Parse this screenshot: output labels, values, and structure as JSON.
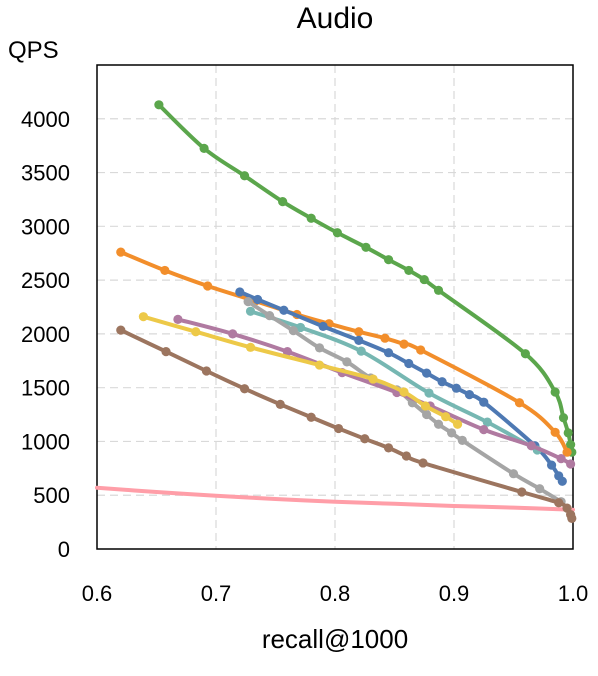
{
  "chart_data": {
    "type": "line",
    "title": "Audio",
    "xlabel": "recall@1000",
    "ylabel": "QPS",
    "xlim": [
      0.6,
      1.0
    ],
    "ylim": [
      0,
      4500
    ],
    "xticks": [
      0.6,
      0.7,
      0.8,
      0.9,
      1.0
    ],
    "xtick_labels": [
      "0.6",
      "0.7",
      "0.8",
      "0.9",
      "1.0"
    ],
    "yticks": [
      0,
      500,
      1000,
      1500,
      2000,
      2500,
      3000,
      3500,
      4000
    ],
    "ytick_labels": [
      "0",
      "500",
      "1000",
      "1500",
      "2000",
      "2500",
      "3000",
      "3500",
      "4000"
    ],
    "grid": true,
    "series": [
      {
        "color": "#ff9ea8",
        "markers": false,
        "points": [
          [
            0.6,
            570
          ],
          [
            0.65,
            530
          ],
          [
            0.7,
            495
          ],
          [
            0.75,
            465
          ],
          [
            0.8,
            440
          ],
          [
            0.85,
            420
          ],
          [
            0.9,
            400
          ],
          [
            0.95,
            385
          ],
          [
            1.0,
            365
          ]
        ]
      },
      {
        "color": "#5ba64c",
        "markers": true,
        "points": [
          [
            0.652,
            4130
          ],
          [
            0.69,
            3725
          ],
          [
            0.724,
            3470
          ],
          [
            0.756,
            3230
          ],
          [
            0.78,
            3075
          ],
          [
            0.802,
            2940
          ],
          [
            0.826,
            2805
          ],
          [
            0.845,
            2690
          ],
          [
            0.862,
            2590
          ],
          [
            0.875,
            2505
          ],
          [
            0.887,
            2405
          ],
          [
            0.96,
            1815
          ],
          [
            0.985,
            1460
          ],
          [
            0.992,
            1220
          ],
          [
            0.996,
            1080
          ],
          [
            0.998,
            970
          ],
          [
            0.999,
            900
          ]
        ]
      },
      {
        "color": "#f28e2b",
        "markers": true,
        "points": [
          [
            0.62,
            2760
          ],
          [
            0.657,
            2590
          ],
          [
            0.693,
            2445
          ],
          [
            0.733,
            2305
          ],
          [
            0.768,
            2180
          ],
          [
            0.795,
            2095
          ],
          [
            0.82,
            2020
          ],
          [
            0.842,
            1960
          ],
          [
            0.858,
            1905
          ],
          [
            0.872,
            1850
          ],
          [
            0.955,
            1360
          ],
          [
            0.985,
            1085
          ],
          [
            0.995,
            900
          ]
        ]
      },
      {
        "color": "#4e79b3",
        "markers": true,
        "points": [
          [
            0.72,
            2390
          ],
          [
            0.735,
            2320
          ],
          [
            0.757,
            2220
          ],
          [
            0.79,
            2070
          ],
          [
            0.82,
            1940
          ],
          [
            0.845,
            1825
          ],
          [
            0.862,
            1725
          ],
          [
            0.877,
            1635
          ],
          [
            0.89,
            1555
          ],
          [
            0.902,
            1495
          ],
          [
            0.913,
            1435
          ],
          [
            0.925,
            1365
          ],
          [
            0.968,
            960
          ],
          [
            0.982,
            780
          ],
          [
            0.988,
            680
          ],
          [
            0.991,
            630
          ]
        ]
      },
      {
        "color": "#76b7b2",
        "markers": true,
        "points": [
          [
            0.729,
            2210
          ],
          [
            0.771,
            2060
          ],
          [
            0.822,
            1840
          ],
          [
            0.879,
            1450
          ],
          [
            0.928,
            1180
          ],
          [
            0.97,
            920
          ]
        ]
      },
      {
        "color": "#a5a5a5",
        "markers": true,
        "points": [
          [
            0.727,
            2300
          ],
          [
            0.745,
            2170
          ],
          [
            0.765,
            2030
          ],
          [
            0.787,
            1870
          ],
          [
            0.81,
            1740
          ],
          [
            0.83,
            1590
          ],
          [
            0.852,
            1480
          ],
          [
            0.865,
            1360
          ],
          [
            0.877,
            1250
          ],
          [
            0.887,
            1160
          ],
          [
            0.898,
            1080
          ],
          [
            0.907,
            1010
          ],
          [
            0.95,
            700
          ],
          [
            0.972,
            560
          ],
          [
            0.99,
            440
          ]
        ]
      },
      {
        "color": "#b07aa1",
        "markers": true,
        "points": [
          [
            0.668,
            2135
          ],
          [
            0.714,
            2000
          ],
          [
            0.76,
            1835
          ],
          [
            0.806,
            1640
          ],
          [
            0.852,
            1455
          ],
          [
            0.88,
            1330
          ],
          [
            0.925,
            1110
          ],
          [
            0.965,
            960
          ],
          [
            0.99,
            840
          ],
          [
            0.998,
            790
          ]
        ]
      },
      {
        "color": "#edc948",
        "markers": true,
        "points": [
          [
            0.639,
            2160
          ],
          [
            0.683,
            2020
          ],
          [
            0.729,
            1875
          ],
          [
            0.787,
            1710
          ],
          [
            0.832,
            1580
          ],
          [
            0.858,
            1460
          ],
          [
            0.876,
            1330
          ],
          [
            0.893,
            1230
          ],
          [
            0.903,
            1160
          ]
        ]
      },
      {
        "color": "#9c755f",
        "markers": true,
        "points": [
          [
            0.62,
            2035
          ],
          [
            0.658,
            1835
          ],
          [
            0.692,
            1655
          ],
          [
            0.724,
            1490
          ],
          [
            0.754,
            1345
          ],
          [
            0.78,
            1225
          ],
          [
            0.803,
            1120
          ],
          [
            0.825,
            1025
          ],
          [
            0.845,
            940
          ],
          [
            0.86,
            865
          ],
          [
            0.874,
            800
          ],
          [
            0.957,
            530
          ],
          [
            0.988,
            430
          ],
          [
            0.995,
            380
          ],
          [
            0.998,
            320
          ],
          [
            0.999,
            285
          ]
        ]
      }
    ]
  }
}
